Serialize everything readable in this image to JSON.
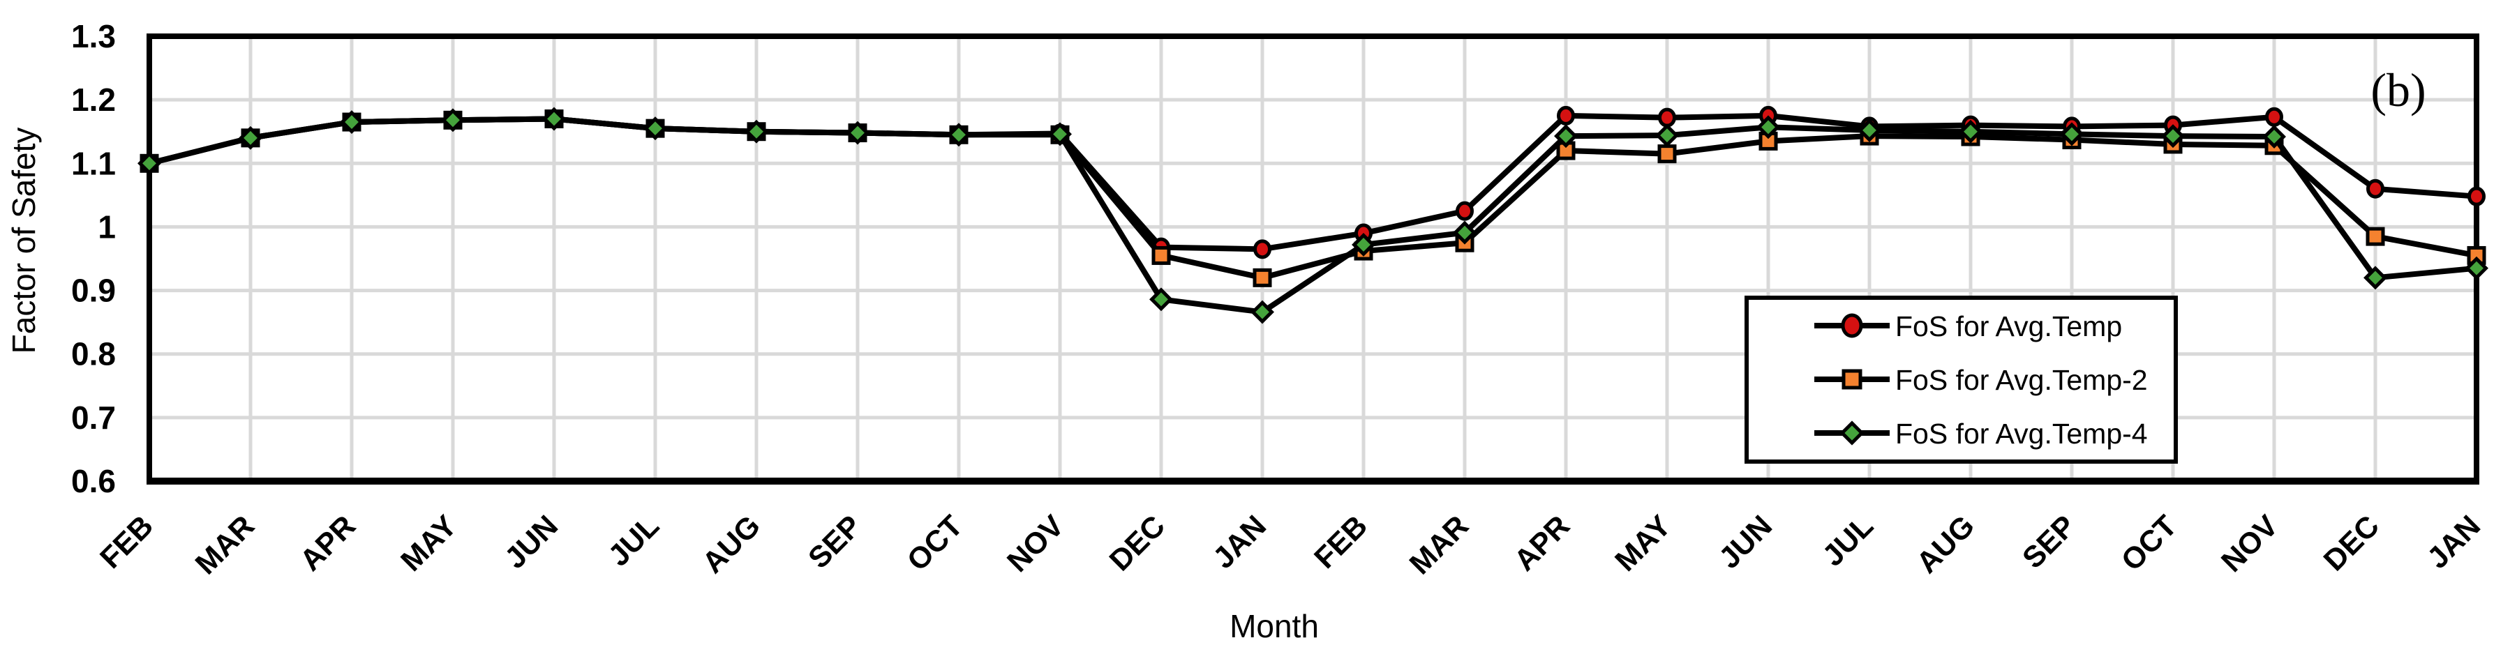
{
  "chart_data": {
    "type": "line",
    "title": "",
    "xlabel": "Month",
    "ylabel": "Factor of Safety",
    "annotation": "(b)",
    "ylim": [
      0.6,
      1.3
    ],
    "y_ticks": [
      "1.3",
      "1.2",
      "1.1",
      "1",
      "0.9",
      "0.8",
      "0.7",
      "0.6"
    ],
    "y_tick_values": [
      1.3,
      1.2,
      1.1,
      1.0,
      0.9,
      0.8,
      0.7,
      0.6
    ],
    "grid": true,
    "gridline_color": "#D9D9D9",
    "line_color": "#000000",
    "legend_position": "inside-bottom-right",
    "categories": [
      "FEB",
      "MAR",
      "APR",
      "MAY",
      "JUN",
      "JUL",
      "AUG",
      "SEP",
      "OCT",
      "NOV",
      "DEC",
      "JAN",
      "FEB",
      "MAR",
      "APR",
      "MAY",
      "JUN",
      "JUL",
      "AUG",
      "SEP",
      "OCT",
      "NOV",
      "DEC",
      "JAN"
    ],
    "series": [
      {
        "name": "FoS for Avg.Temp",
        "marker": "circle",
        "color": "#D51111",
        "values": [
          1.1,
          1.14,
          1.165,
          1.168,
          1.17,
          1.155,
          1.15,
          1.148,
          1.145,
          1.147,
          0.968,
          0.965,
          0.99,
          1.025,
          1.175,
          1.172,
          1.175,
          1.158,
          1.16,
          1.158,
          1.16,
          1.173,
          1.06,
          1.048
        ]
      },
      {
        "name": "FoS for Avg.Temp-2",
        "marker": "square",
        "color": "#F5822F",
        "values": [
          1.1,
          1.14,
          1.165,
          1.168,
          1.17,
          1.155,
          1.15,
          1.148,
          1.145,
          1.145,
          0.955,
          0.92,
          0.962,
          0.975,
          1.12,
          1.115,
          1.135,
          1.143,
          1.142,
          1.137,
          1.13,
          1.128,
          0.985,
          0.955
        ]
      },
      {
        "name": "FoS for Avg.Temp-4",
        "marker": "diamond",
        "color": "#45A33C",
        "values": [
          1.1,
          1.14,
          1.165,
          1.168,
          1.17,
          1.155,
          1.15,
          1.148,
          1.145,
          1.146,
          0.886,
          0.866,
          0.972,
          0.991,
          1.143,
          1.144,
          1.157,
          1.152,
          1.15,
          1.146,
          1.143,
          1.142,
          0.92,
          0.935
        ]
      }
    ]
  }
}
